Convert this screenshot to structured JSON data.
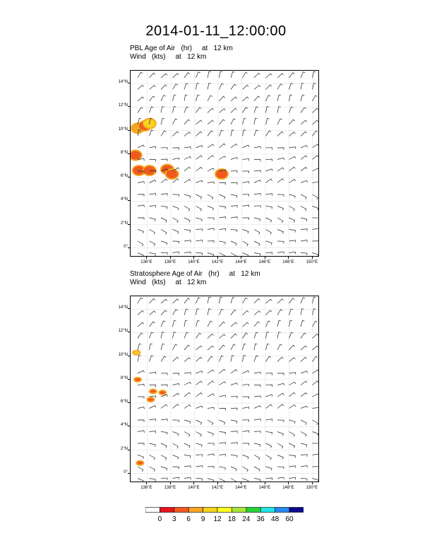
{
  "title": "2014-01-11_12:00:00",
  "panels": [
    {
      "label_line1": "PBL Age of Air   (hr)     at   12 km",
      "label_line2": "Wind   (kts)     at   12 km"
    },
    {
      "label_line1": "Stratosphere Age of Air   (hr)     at   12 km",
      "label_line2": "Wind   (kts)     at   12 km"
    }
  ],
  "chart_data": [
    {
      "type": "heatmap",
      "title": "PBL Age of Air (hr) at 12 km",
      "subtitle": "Wind (kts) at 12 km",
      "xlim": [
        134.6,
        150.6
      ],
      "ylim": [
        -0.8,
        15.1
      ],
      "x_ticks": [
        "136°E",
        "138°E",
        "140°E",
        "142°E",
        "144°E",
        "146°E",
        "148°E",
        "150°E"
      ],
      "y_ticks": [
        "0°",
        "2°N",
        "4°N",
        "6°N",
        "8°N",
        "10°N",
        "12°N",
        "14°N"
      ],
      "features": [
        {
          "lon": 135.2,
          "lat": 10.2,
          "value": 6
        },
        {
          "lon": 135.8,
          "lat": 10.4,
          "value": 3
        },
        {
          "lon": 136.2,
          "lat": 10.6,
          "value": 9
        },
        {
          "lon": 135.0,
          "lat": 7.9,
          "value": 3
        },
        {
          "lon": 135.3,
          "lat": 6.6,
          "value": 3
        },
        {
          "lon": 136.2,
          "lat": 6.6,
          "value": 3
        },
        {
          "lon": 137.7,
          "lat": 6.7,
          "value": 3
        },
        {
          "lon": 138.1,
          "lat": 6.3,
          "value": 3
        },
        {
          "lon": 142.3,
          "lat": 6.3,
          "value": 3
        }
      ]
    },
    {
      "type": "heatmap",
      "title": "Stratosphere Age of Air (hr) at 12 km",
      "subtitle": "Wind (kts) at 12 km",
      "xlim": [
        134.6,
        150.6
      ],
      "ylim": [
        -0.8,
        15.1
      ],
      "x_ticks": [
        "136°E",
        "138°E",
        "140°E",
        "142°E",
        "144°E",
        "146°E",
        "148°E",
        "150°E"
      ],
      "y_ticks": [
        "0°",
        "2°N",
        "4°N",
        "6°N",
        "8°N",
        "10°N",
        "12°N",
        "14°N"
      ],
      "features": [
        {
          "lon": 135.1,
          "lat": 10.3,
          "value": 9
        },
        {
          "lon": 135.2,
          "lat": 8.0,
          "value": 3
        },
        {
          "lon": 136.5,
          "lat": 7.0,
          "value": 3
        },
        {
          "lon": 137.3,
          "lat": 6.9,
          "value": 3
        },
        {
          "lon": 136.3,
          "lat": 6.3,
          "value": 3
        },
        {
          "lon": 135.4,
          "lat": 0.9,
          "value": 3
        }
      ]
    }
  ],
  "colorbar": {
    "labels": [
      "0",
      "3",
      "6",
      "9",
      "12",
      "18",
      "24",
      "36",
      "48",
      "60"
    ],
    "colors": [
      "#ffffff",
      "#e8141c",
      "#f05a1e",
      "#f5a623",
      "#f7d41e",
      "#ffff1e",
      "#a8e63c",
      "#28d23c",
      "#1ee6e6",
      "#2888f0",
      "#0a0a8c"
    ]
  }
}
